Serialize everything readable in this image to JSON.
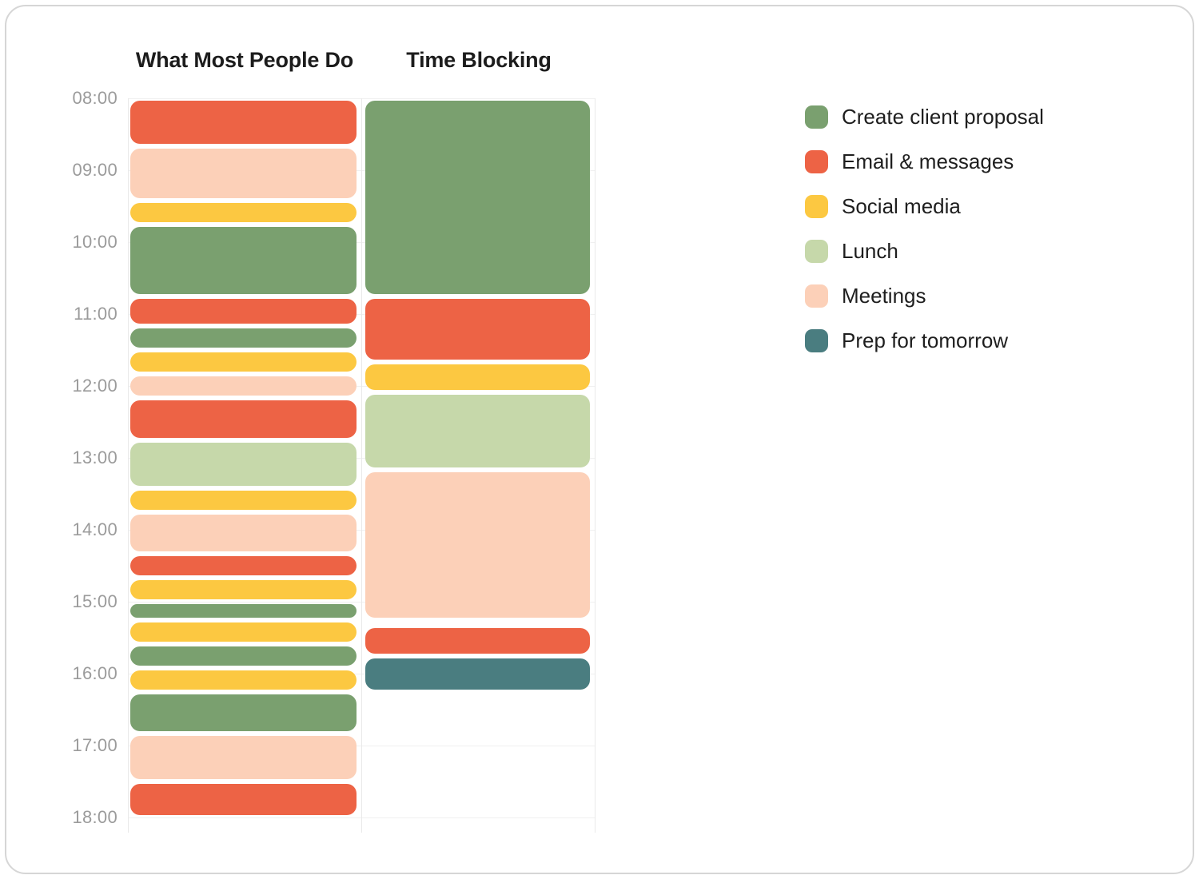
{
  "card": {
    "background": "#ffffff",
    "border_color": "#d6d6d6"
  },
  "chart_data": {
    "type": "bar",
    "subtype": "vertical-time-block-schedule-comparison",
    "title": "",
    "time_axis": {
      "orientation": "vertical",
      "start": "08:00",
      "end": "18:00",
      "tick_interval_minutes": 60,
      "ticks": [
        "08:00",
        "09:00",
        "10:00",
        "11:00",
        "12:00",
        "13:00",
        "14:00",
        "15:00",
        "16:00",
        "17:00",
        "18:00"
      ],
      "tick_color": "#9b9b9b",
      "grid": "on",
      "gridline_color": "#f0f0f0"
    },
    "categories": [
      {
        "id": "create-client-proposal",
        "label": "Create client proposal",
        "color": "#7AA06F"
      },
      {
        "id": "email-messages",
        "label": "Email & messages",
        "color": "#ED6345"
      },
      {
        "id": "social-media",
        "label": "Social media",
        "color": "#FCC841"
      },
      {
        "id": "lunch",
        "label": "Lunch",
        "color": "#C6D8AA"
      },
      {
        "id": "meetings",
        "label": "Meetings",
        "color": "#FCD0B8"
      },
      {
        "id": "prep-for-tomorrow",
        "label": "Prep for tomorrow",
        "color": "#4A7D80"
      }
    ],
    "legend_position": "right",
    "columns": [
      {
        "title": "What Most People Do",
        "blocks": [
          {
            "category": "email-messages",
            "start": "08:00",
            "end": "08:40"
          },
          {
            "category": "meetings",
            "start": "08:40",
            "end": "09:25"
          },
          {
            "category": "social-media",
            "start": "09:25",
            "end": "09:45"
          },
          {
            "category": "create-client-proposal",
            "start": "09:45",
            "end": "10:45"
          },
          {
            "category": "email-messages",
            "start": "10:45",
            "end": "11:10"
          },
          {
            "category": "create-client-proposal",
            "start": "11:10",
            "end": "11:30"
          },
          {
            "category": "social-media",
            "start": "11:30",
            "end": "11:50"
          },
          {
            "category": "meetings",
            "start": "11:50",
            "end": "12:10"
          },
          {
            "category": "email-messages",
            "start": "12:10",
            "end": "12:45"
          },
          {
            "category": "lunch",
            "start": "12:45",
            "end": "13:25"
          },
          {
            "category": "social-media",
            "start": "13:25",
            "end": "13:45"
          },
          {
            "category": "meetings",
            "start": "13:45",
            "end": "14:20"
          },
          {
            "category": "email-messages",
            "start": "14:20",
            "end": "14:40"
          },
          {
            "category": "social-media",
            "start": "14:40",
            "end": "15:00"
          },
          {
            "category": "create-client-proposal",
            "start": "15:00",
            "end": "15:15"
          },
          {
            "category": "social-media",
            "start": "15:15",
            "end": "15:35"
          },
          {
            "category": "create-client-proposal",
            "start": "15:35",
            "end": "15:55"
          },
          {
            "category": "social-media",
            "start": "15:55",
            "end": "16:15"
          },
          {
            "category": "create-client-proposal",
            "start": "16:15",
            "end": "16:50"
          },
          {
            "category": "meetings",
            "start": "16:50",
            "end": "17:30"
          },
          {
            "category": "email-messages",
            "start": "17:30",
            "end": "18:00"
          }
        ]
      },
      {
        "title": "Time Blocking",
        "blocks": [
          {
            "category": "create-client-proposal",
            "start": "08:00",
            "end": "10:45"
          },
          {
            "category": "email-messages",
            "start": "10:45",
            "end": "11:40"
          },
          {
            "category": "social-media",
            "start": "11:40",
            "end": "12:05"
          },
          {
            "category": "lunch",
            "start": "12:05",
            "end": "13:10"
          },
          {
            "category": "meetings",
            "start": "13:10",
            "end": "15:15"
          },
          {
            "category": "email-messages",
            "start": "15:20",
            "end": "15:45"
          },
          {
            "category": "prep-for-tomorrow",
            "start": "15:45",
            "end": "16:15"
          }
        ]
      }
    ]
  }
}
